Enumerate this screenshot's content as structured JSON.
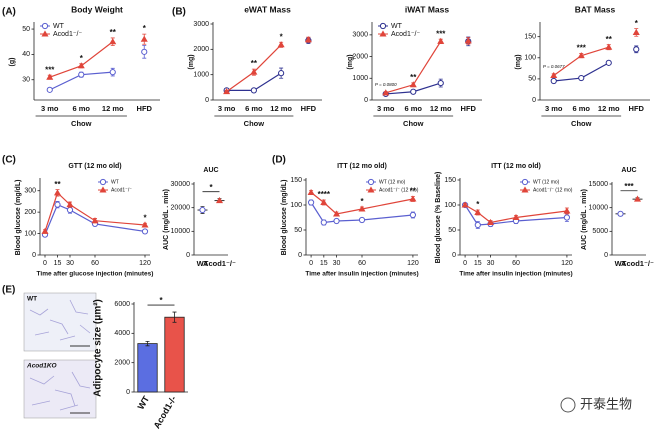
{
  "watermark": "开泰生物",
  "images": [
    {
      "label": "WT"
    },
    {
      "label": "Acod1KO"
    }
  ],
  "chart_data": [
    {
      "panel": "(A)",
      "type": "line",
      "title": "Body Weight",
      "ylabel": "(g)",
      "categories": [
        "3 mo",
        "6 mo",
        "12 mo",
        "HFD"
      ],
      "bracket": {
        "label": "Chow",
        "from": "3 mo",
        "to": "12 mo"
      },
      "ylim": [
        22,
        52
      ],
      "yticks": [
        30,
        40,
        50
      ],
      "legend": "top-left",
      "series": [
        {
          "name": "WT",
          "color": "#5a5fd0",
          "marker": "circle",
          "values": [
            26,
            32,
            33,
            41
          ],
          "errors": [
            0.6,
            1,
            1.5,
            2.5
          ]
        },
        {
          "name": "Acod1⁻/⁻",
          "color": "#e0453a",
          "marker": "triangle",
          "values": [
            31,
            35.5,
            45,
            46
          ],
          "errors": [
            0.8,
            0.8,
            1.5,
            2
          ]
        }
      ],
      "annotations": [
        {
          "at": "3 mo",
          "text": "***"
        },
        {
          "at": "6 mo",
          "text": "*"
        },
        {
          "at": "12 mo",
          "text": "**"
        },
        {
          "at": "HFD",
          "text": "*"
        }
      ]
    },
    {
      "panel": "(B)",
      "type": "line",
      "title": "eWAT Mass",
      "ylabel": "(mg)",
      "categories": [
        "3 mo",
        "6 mo",
        "12 mo",
        "HFD"
      ],
      "bracket": {
        "label": "Chow",
        "from": "3 mo",
        "to": "12 mo"
      },
      "ylim": [
        0,
        3000
      ],
      "yticks": [
        0,
        1000,
        2000,
        3000
      ],
      "series": [
        {
          "name": "WT",
          "color": "#2e3190",
          "marker": "circle",
          "values": [
            380,
            380,
            1060,
            2350
          ],
          "errors": [
            60,
            50,
            200,
            120
          ]
        },
        {
          "name": "Acod1⁻/⁻",
          "color": "#e0453a",
          "marker": "triangle",
          "values": [
            330,
            1100,
            2180,
            2380
          ],
          "errors": [
            50,
            120,
            100,
            100
          ]
        }
      ],
      "annotations": [
        {
          "at": "6 mo",
          "text": "**"
        },
        {
          "at": "12 mo",
          "text": "*"
        }
      ]
    },
    {
      "type": "line",
      "title": "iWAT Mass",
      "ylabel": "(mg)",
      "categories": [
        "3 mo",
        "6 mo",
        "12 mo",
        "HFD"
      ],
      "bracket": {
        "label": "Chow",
        "from": "3 mo",
        "to": "12 mo"
      },
      "ylim": [
        0,
        3500
      ],
      "yticks": [
        0,
        1000,
        2000,
        3000
      ],
      "legend": "top-left",
      "series": [
        {
          "name": "WT",
          "color": "#2e3190",
          "marker": "circle",
          "values": [
            280,
            380,
            780,
            2700
          ],
          "errors": [
            60,
            60,
            180,
            200
          ]
        },
        {
          "name": "Acod1⁻/⁻",
          "color": "#e0453a",
          "marker": "triangle",
          "values": [
            330,
            700,
            2700,
            2720
          ],
          "errors": [
            50,
            90,
            100,
            150
          ]
        }
      ],
      "annotations": [
        {
          "at": "3 mo",
          "text": "P = 0.0800"
        },
        {
          "at": "6 mo",
          "text": "**"
        },
        {
          "at": "12 mo",
          "text": "***"
        }
      ]
    },
    {
      "type": "line",
      "title": "BAT Mass",
      "ylabel": "(mg)",
      "categories": [
        "3 mo",
        "6 mo",
        "12 mo",
        "HFD"
      ],
      "bracket": {
        "label": "Chow",
        "from": "3 mo",
        "to": "12 mo"
      },
      "ylim": [
        0,
        180
      ],
      "yticks": [
        0,
        50,
        100,
        150
      ],
      "series": [
        {
          "name": "WT",
          "color": "#2e3190",
          "marker": "circle",
          "values": [
            45,
            52,
            88,
            120
          ],
          "errors": [
            3,
            3,
            4,
            8
          ]
        },
        {
          "name": "Acod1⁻/⁻",
          "color": "#e0453a",
          "marker": "triangle",
          "values": [
            58,
            105,
            125,
            160
          ],
          "errors": [
            4,
            5,
            6,
            9
          ]
        }
      ],
      "annotations": [
        {
          "at": "3 mo",
          "text": "P = 0.0677"
        },
        {
          "at": "6 mo",
          "text": "***"
        },
        {
          "at": "12 mo",
          "text": "**"
        },
        {
          "at": "HFD",
          "text": "*"
        }
      ]
    },
    {
      "panel": "(C)",
      "type": "line",
      "title": "GTT (12 mo old)",
      "ylabel": "Blood glucose (mg/dL)",
      "xlabel": "Time after glucose injection (minutes)",
      "x": [
        0,
        15,
        30,
        60,
        120
      ],
      "xlim": [
        -6,
        126
      ],
      "xticks": [
        0,
        15,
        30,
        60,
        120
      ],
      "ylim": [
        0,
        350
      ],
      "yticks": [
        0,
        100,
        200,
        300
      ],
      "legend": "top-right",
      "series": [
        {
          "name": "WT",
          "color": "#5a5fd0",
          "marker": "circle",
          "values": [
            95,
            235,
            210,
            145,
            110
          ],
          "errors": [
            8,
            15,
            15,
            10,
            8
          ]
        },
        {
          "name": "Acod1⁻/⁻",
          "color": "#e0453a",
          "marker": "triangle",
          "values": [
            110,
            290,
            235,
            160,
            140
          ],
          "errors": [
            8,
            15,
            12,
            10,
            8
          ]
        }
      ],
      "annotations": [
        {
          "at": 15,
          "text": "**"
        },
        {
          "at": 120,
          "text": "*"
        }
      ]
    },
    {
      "type": "scatter",
      "title": "AUC",
      "ylabel": "AUC (mg/dL . min)",
      "categories": [
        "WT",
        "Acod1⁻/⁻"
      ],
      "values": [
        19000,
        23000
      ],
      "errors": [
        1500,
        800
      ],
      "colors": [
        "#5a5fd0",
        "#e0453a"
      ],
      "markers": [
        "circle",
        "triangle"
      ],
      "ylim": [
        0,
        30000
      ],
      "yticks": [
        0,
        10000,
        20000,
        30000
      ],
      "annotations": [
        {
          "text": "*"
        }
      ]
    },
    {
      "panel": "(D)",
      "type": "line",
      "title": "ITT (12 mo old)",
      "ylabel": "Blood glucose (mg/dL)",
      "xlabel": "Time after insulin injection (minutes)",
      "x": [
        0,
        15,
        30,
        60,
        120
      ],
      "xlim": [
        -6,
        126
      ],
      "xticks": [
        0,
        15,
        30,
        60,
        120
      ],
      "ylim": [
        0,
        150
      ],
      "yticks": [
        0,
        50,
        100,
        150
      ],
      "legend": "top-right",
      "series": [
        {
          "name": "WT (12 mo)",
          "color": "#5a5fd0",
          "marker": "circle",
          "values": [
            105,
            65,
            68,
            70,
            80
          ],
          "errors": [
            5,
            5,
            4,
            4,
            6
          ]
        },
        {
          "name": "Acod1⁻/⁻ (12 mo)",
          "color": "#e0453a",
          "marker": "triangle",
          "values": [
            125,
            105,
            82,
            92,
            112
          ],
          "errors": [
            4,
            5,
            4,
            4,
            5
          ]
        }
      ],
      "annotations": [
        {
          "at": 15,
          "text": "****"
        },
        {
          "at": 60,
          "text": "*"
        },
        {
          "at": 120,
          "text": "**"
        }
      ]
    },
    {
      "type": "line",
      "title": "ITT (12 mo old)",
      "ylabel": "Blood glucose (% Baseline)",
      "xlabel": "Time after insulin injection (minutes)",
      "x": [
        0,
        15,
        30,
        60,
        120
      ],
      "xlim": [
        -6,
        126
      ],
      "xticks": [
        0,
        15,
        30,
        60,
        120
      ],
      "ylim": [
        0,
        150
      ],
      "yticks": [
        0,
        50,
        100,
        150
      ],
      "legend": "top-right",
      "series": [
        {
          "name": "WT (12 mo)",
          "color": "#5a5fd0",
          "marker": "circle",
          "values": [
            100,
            60,
            62,
            68,
            75
          ],
          "errors": [
            3,
            7,
            5,
            5,
            8
          ]
        },
        {
          "name": "Acod1⁻/⁻ (12 mo)",
          "color": "#e0453a",
          "marker": "triangle",
          "values": [
            100,
            85,
            65,
            75,
            88
          ],
          "errors": [
            3,
            5,
            4,
            4,
            6
          ]
        }
      ],
      "annotations": [
        {
          "at": 15,
          "text": "*"
        }
      ]
    },
    {
      "type": "scatter",
      "title": "AUC",
      "ylabel": "AUC (mg/dL . min)",
      "categories": [
        "WT",
        "Acod1⁻/⁻"
      ],
      "values": [
        8700,
        11800
      ],
      "errors": [
        400,
        300
      ],
      "colors": [
        "#5a5fd0",
        "#e0453a"
      ],
      "markers": [
        "circle",
        "triangle"
      ],
      "ylim": [
        0,
        15000
      ],
      "yticks": [
        0,
        5000,
        10000,
        15000
      ],
      "annotations": [
        {
          "text": "***"
        }
      ]
    },
    {
      "panel": "(E)",
      "type": "bar",
      "ylabel": "Adipocyte size (μm²)",
      "categories": [
        "WT",
        "Acod1-/-"
      ],
      "values": [
        3300,
        5100
      ],
      "errors": [
        150,
        350
      ],
      "colors": [
        "#5b6ee1",
        "#e8534a"
      ],
      "ylim": [
        0,
        6000
      ],
      "yticks": [
        0,
        2000,
        4000,
        6000
      ],
      "annotations": [
        {
          "text": "*"
        }
      ]
    }
  ]
}
